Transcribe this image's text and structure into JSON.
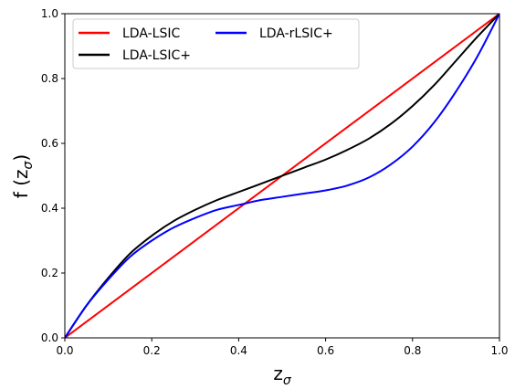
{
  "chart_data": {
    "type": "line",
    "title": "",
    "xlabel": {
      "base": "z",
      "subscript": "σ"
    },
    "ylabel": {
      "prefix": "f (z",
      "subscript": "σ",
      "suffix": ")"
    },
    "xlim": [
      0.0,
      1.0
    ],
    "ylim": [
      0.0,
      1.0
    ],
    "xticks": [
      "0.0",
      "0.2",
      "0.4",
      "0.6",
      "0.8",
      "1.0"
    ],
    "yticks": [
      "0.0",
      "0.2",
      "0.4",
      "0.6",
      "0.8",
      "1.0"
    ],
    "grid": false,
    "legend": {
      "position": "top-left",
      "columns": 2
    },
    "series": [
      {
        "name": "LDA-LSIC",
        "color": "#ff0000",
        "x": [
          0.0,
          1.0
        ],
        "y": [
          0.0,
          1.0
        ]
      },
      {
        "name": "LDA-LSIC+",
        "color": "#000000",
        "x": [
          0.0,
          0.05,
          0.1,
          0.15,
          0.2,
          0.25,
          0.3,
          0.35,
          0.4,
          0.45,
          0.5,
          0.55,
          0.6,
          0.65,
          0.7,
          0.75,
          0.8,
          0.85,
          0.9,
          0.95,
          1.0
        ],
        "y": [
          0.0,
          0.1,
          0.185,
          0.26,
          0.315,
          0.36,
          0.395,
          0.425,
          0.45,
          0.475,
          0.5,
          0.525,
          0.55,
          0.58,
          0.615,
          0.66,
          0.715,
          0.78,
          0.855,
          0.93,
          1.0
        ]
      },
      {
        "name": "LDA-rLSIC+",
        "color": "#0000ff",
        "x": [
          0.0,
          0.05,
          0.1,
          0.15,
          0.2,
          0.25,
          0.3,
          0.35,
          0.4,
          0.45,
          0.5,
          0.55,
          0.6,
          0.65,
          0.7,
          0.75,
          0.8,
          0.85,
          0.9,
          0.95,
          1.0
        ],
        "y": [
          0.0,
          0.1,
          0.18,
          0.25,
          0.3,
          0.34,
          0.37,
          0.395,
          0.41,
          0.425,
          0.435,
          0.445,
          0.455,
          0.47,
          0.495,
          0.535,
          0.59,
          0.665,
          0.76,
          0.87,
          1.0
        ]
      }
    ]
  }
}
